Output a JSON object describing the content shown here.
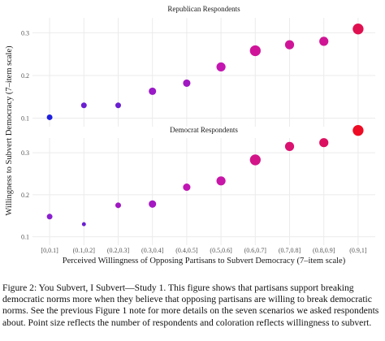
{
  "chart_data": {
    "type": "scatter",
    "xlabel": "Perceived Willingness of Opposing Partisans to Subvert Democracy (7–item scale)",
    "ylabel": "Willingness to Subvert Democracy (7–item scale)",
    "categories": [
      "[0,0.1]",
      "(0.1,0.2]",
      "(0.2,0.3]",
      "(0.3,0.4]",
      "(0.4,0.5]",
      "(0.5,0.6]",
      "(0.6,0.7]",
      "(0.7,0.8]",
      "(0.8,0.9]",
      "(0.9,1]"
    ],
    "yticks": [
      0.1,
      0.2,
      0.3
    ],
    "ylim": [
      0.08,
      0.335
    ],
    "grid": true,
    "panels": [
      {
        "title": "Republican Respondents",
        "values": [
          0.102,
          0.13,
          0.13,
          0.163,
          0.182,
          0.22,
          0.258,
          0.272,
          0.28,
          0.309
        ],
        "point_size": [
          2,
          2,
          2,
          3,
          3,
          4,
          5,
          4,
          4,
          5
        ],
        "colors": [
          "#1f1fe0",
          "#6a1fd0",
          "#6a1fd0",
          "#9a1ac8",
          "#a018c2",
          "#c416b0",
          "#d0149a",
          "#cf1597",
          "#cf1594",
          "#e01050"
        ]
      },
      {
        "title": "Democrat Respondents",
        "values": [
          0.148,
          0.13,
          0.175,
          0.178,
          0.218,
          0.233,
          0.283,
          0.315,
          0.324,
          0.353
        ],
        "point_size": [
          2,
          1,
          2,
          3,
          3,
          4,
          5,
          4,
          4,
          5
        ],
        "colors": [
          "#8a1fd0",
          "#6a1fd0",
          "#a018c2",
          "#a418c2",
          "#c016b4",
          "#c816a8",
          "#d31488",
          "#da1270",
          "#dc1060",
          "#ee0c24"
        ]
      }
    ]
  },
  "caption": "Figure 2: You Subvert, I Subvert—Study 1. This figure shows that partisans support breaking democratic norms more when they believe that opposing partisans are willing to break democratic norms. See the previous Figure 1 note for more details on the seven scenarios we asked respondents about. Point size reflects the number of respondents and coloration reflects willingness to subvert."
}
